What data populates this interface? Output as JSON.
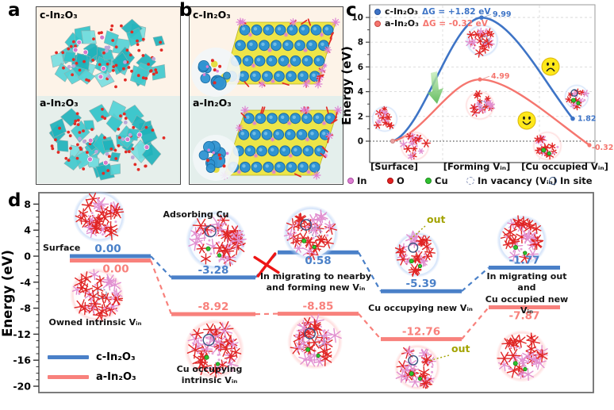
{
  "figure": {
    "colors": {
      "panel_c_blue": "#3e74c6",
      "panel_c_red": "#f5766f",
      "panel_d_blue": "#4a80c8",
      "panel_d_red": "#f8817c",
      "cu_green": "#2fc12f",
      "o_red": "#e32222",
      "in_pink": "#dd7fd3",
      "vacancy_gray": "#8893b8",
      "in_site_navy": "#35517e",
      "smiley_yellow": "#ffe81a",
      "out_olive": "#a3a300",
      "cross_red": "#ee1515",
      "bg_peach": "#fdf3e8",
      "bg_teal": "#e6efeb"
    },
    "panel_a": {
      "label": "a",
      "sections": [
        {
          "title": "c-In₂O₃"
        },
        {
          "title": "a-In₂O₃"
        }
      ]
    },
    "panel_b": {
      "label": "b",
      "sections": [
        {
          "title": "c-In₂O₃"
        },
        {
          "title": "a-In₂O₃"
        }
      ]
    },
    "panel_c": {
      "label": "c",
      "legend": [
        {
          "name": "c-In₂O₃",
          "dg": "ΔG = +1.82 eV"
        },
        {
          "name": "a-In₂O₃",
          "dg": "ΔG = -0.32 eV"
        }
      ]
    },
    "atom_legend": [
      {
        "label": "In"
      },
      {
        "label": "O"
      },
      {
        "label": "Cu"
      },
      {
        "label": "In vacancy (Vᵢₙ)"
      },
      {
        "label": "In site"
      }
    ],
    "panel_d": {
      "label": "d",
      "annotations": {
        "surface": "Surface",
        "adsorbing_cu": "Adsorbing Cu",
        "migrate_nearby": "In migrating to nearby\nand forming new Vᵢₙ",
        "cu_occupying_new": "Cu occupying new Vᵢₙ",
        "migrate_out": "In migrating out and\nCu occupied new Vᵢₙ",
        "owned_intrinsic": "Owned intrinsic Vᵢₙ",
        "cu_occupying_intrinsic": "Cu occupying\nintrinsic Vᵢₙ",
        "out": "out"
      },
      "legend": [
        {
          "name": "c-In₂O₃"
        },
        {
          "name": "a-In₂O₃"
        }
      ]
    }
  },
  "chart_data": [
    {
      "id": "panel-c",
      "type": "line",
      "title": "",
      "xlabel": "",
      "ylabel": "Energy (eV)",
      "categories": [
        "[Surface]",
        "[Forming Vᵢₙ]",
        "[Cu occupied Vᵢₙ]"
      ],
      "yticks": [
        0,
        2,
        4,
        6,
        8,
        10
      ],
      "ylim": [
        -1.7,
        10.8
      ],
      "grid": "dashed",
      "zero_line": true,
      "legend_position": "top-left",
      "series": [
        {
          "name": "c-In₂O₃",
          "color": "#3e74c6",
          "values": [
            0,
            9.99,
            1.82
          ],
          "point_labels": [
            "",
            "9.99",
            "1.82"
          ],
          "dg": "ΔG = +1.82 eV"
        },
        {
          "name": "a-In₂O₃",
          "color": "#f5766f",
          "values": [
            0,
            4.99,
            -0.32
          ],
          "point_labels": [
            "",
            "4.99",
            "-0.32"
          ],
          "dg": "ΔG = -0.32 eV"
        }
      ]
    },
    {
      "id": "panel-d",
      "type": "step-levels",
      "title": "",
      "xlabel": "",
      "ylabel": "Energy (eV)",
      "yticks": [
        8,
        4,
        0,
        -4,
        -8,
        -12,
        -16,
        -20
      ],
      "ylim": [
        -21.5,
        9.3
      ],
      "grid": "off",
      "legend_position": "bottom-left",
      "series": [
        {
          "name": "c-In₂O₃",
          "color": "#4a80c8",
          "values": [
            0.0,
            -3.28,
            0.58,
            -5.39,
            -1.77
          ],
          "value_labels": [
            "0.00",
            "-3.28",
            "0.58",
            "-5.39",
            "-1.77"
          ]
        },
        {
          "name": "a-In₂O₃",
          "color": "#f8817c",
          "values": [
            0.0,
            -8.92,
            -8.85,
            -12.76,
            -7.87
          ],
          "value_labels": [
            "0.00",
            "-8.92",
            "-8.85",
            "-12.76",
            "-7.87"
          ]
        }
      ]
    }
  ]
}
